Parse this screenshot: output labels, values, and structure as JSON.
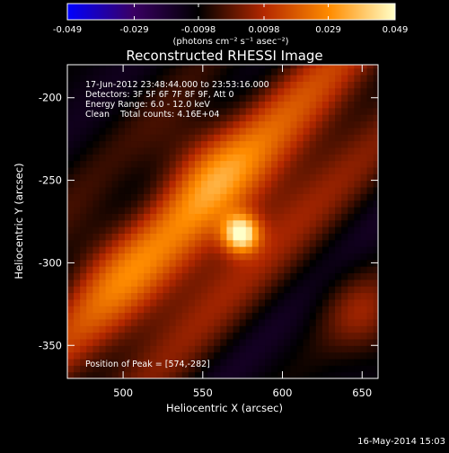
{
  "chart_data": {
    "type": "heatmap",
    "title": "Reconstructed RHESSI Image",
    "xlabel": "Heliocentric X (arcsec)",
    "ylabel": "Heliocentric Y (arcsec)",
    "xlim": [
      465,
      660
    ],
    "ylim": [
      -370,
      -180
    ],
    "x_ticks": [
      500,
      550,
      600,
      650
    ],
    "y_ticks": [
      -200,
      -250,
      -300,
      -350
    ],
    "colorbar": {
      "range": [
        -0.049,
        0.049
      ],
      "ticks": [
        "-0.049",
        "-0.029",
        "-0.0098",
        "0.0098",
        "0.029",
        "0.049"
      ],
      "unit_label": "(photons cm⁻² s⁻¹ asec⁻²)",
      "colormap": [
        "#0000ff",
        "#3a0064",
        "#000000",
        "#b42800",
        "#ff8c00",
        "#ffffc8"
      ]
    },
    "info_lines": [
      "17-Jun-2012 23:48:44.000 to 23:53:16.000",
      "Detectors: 3F 5F 6F 7F 8F 9F, Att 0",
      "Energy Range: 6.0 - 12.0 keV",
      "Clean    Total counts: 4.16E+04"
    ],
    "peak_label": "Position of Peak = [574,-282]",
    "peak": {
      "x": 574,
      "y": -282
    },
    "footer_date": "16-May-2014 15:03"
  }
}
